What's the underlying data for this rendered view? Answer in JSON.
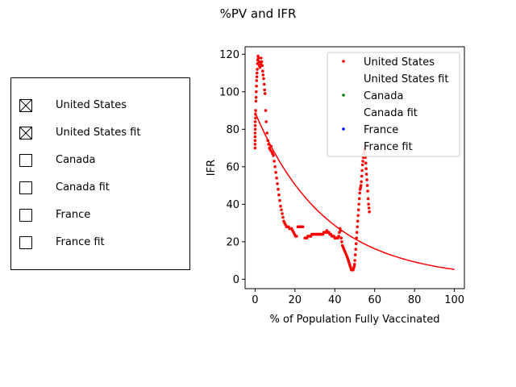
{
  "title": "%PV and IFR",
  "checkboxes": [
    {
      "label": "United States",
      "checked": true
    },
    {
      "label": "United States fit",
      "checked": true
    },
    {
      "label": "Canada",
      "checked": false
    },
    {
      "label": "Canada fit",
      "checked": false
    },
    {
      "label": "France",
      "checked": false
    },
    {
      "label": "France fit",
      "checked": false
    }
  ],
  "chart_data": {
    "type": "scatter",
    "xlabel": "% of Population Fully Vaccinated",
    "ylabel": "IFR",
    "xlim": [
      -5,
      105
    ],
    "ylim": [
      -5,
      124
    ],
    "xticks": [
      0,
      20,
      40,
      60,
      80,
      100
    ],
    "yticks": [
      0,
      20,
      40,
      60,
      80,
      100,
      120
    ],
    "grid": false,
    "legend_position": "upper-right",
    "legend": [
      {
        "label": "United States",
        "marker": "dot",
        "color": "#ff0000"
      },
      {
        "label": "United States fit",
        "marker": "none",
        "color": "#ffffff"
      },
      {
        "label": "Canada",
        "marker": "dot",
        "color": "#008000"
      },
      {
        "label": "Canada fit",
        "marker": "none",
        "color": "#ffffff"
      },
      {
        "label": "France",
        "marker": "dot",
        "color": "#0000ff"
      },
      {
        "label": "France fit",
        "marker": "none",
        "color": "#ffffff"
      }
    ],
    "series": [
      {
        "name": "United States",
        "kind": "scatter",
        "color": "#ff0000",
        "points": [
          [
            0.0,
            70
          ],
          [
            0.0,
            72
          ],
          [
            0.0,
            74
          ],
          [
            0.0,
            76
          ],
          [
            0.0,
            78
          ],
          [
            0.1,
            80
          ],
          [
            0.1,
            82
          ],
          [
            0.1,
            84
          ],
          [
            0.2,
            86
          ],
          [
            0.2,
            88
          ],
          [
            0.3,
            90
          ],
          [
            0.4,
            95
          ],
          [
            0.5,
            97
          ],
          [
            0.6,
            100
          ],
          [
            0.7,
            103
          ],
          [
            0.8,
            106
          ],
          [
            0.9,
            108
          ],
          [
            1.0,
            110
          ],
          [
            1.1,
            112
          ],
          [
            1.2,
            115
          ],
          [
            1.3,
            117
          ],
          [
            1.5,
            119
          ],
          [
            1.7,
            118
          ],
          [
            2.0,
            116
          ],
          [
            2.2,
            114
          ],
          [
            2.5,
            113
          ],
          [
            2.8,
            115
          ],
          [
            3.0,
            118
          ],
          [
            3.3,
            116
          ],
          [
            3.6,
            114
          ],
          [
            3.8,
            111
          ],
          [
            4.0,
            109
          ],
          [
            4.3,
            107
          ],
          [
            4.6,
            104
          ],
          [
            4.8,
            101
          ],
          [
            5.0,
            99
          ],
          [
            5.3,
            90
          ],
          [
            5.6,
            84
          ],
          [
            6.0,
            78
          ],
          [
            6.4,
            74
          ],
          [
            6.8,
            72
          ],
          [
            7.2,
            70
          ],
          [
            7.6,
            69
          ],
          [
            8.0,
            71
          ],
          [
            8.4,
            68
          ],
          [
            8.8,
            67
          ],
          [
            9.2,
            66
          ],
          [
            9.6,
            63
          ],
          [
            10.0,
            60
          ],
          [
            10.4,
            57
          ],
          [
            10.8,
            54
          ],
          [
            11.2,
            51
          ],
          [
            11.6,
            48
          ],
          [
            12.0,
            45
          ],
          [
            12.4,
            42
          ],
          [
            12.8,
            39
          ],
          [
            13.2,
            37
          ],
          [
            13.6,
            35
          ],
          [
            14.0,
            33
          ],
          [
            14.4,
            31
          ],
          [
            14.8,
            30
          ],
          [
            15.3,
            29
          ],
          [
            15.8,
            28
          ],
          [
            16.3,
            28
          ],
          [
            16.8,
            28
          ],
          [
            17.3,
            27
          ],
          [
            17.8,
            27
          ],
          [
            18.3,
            27
          ],
          [
            18.8,
            26
          ],
          [
            19.3,
            25
          ],
          [
            19.8,
            24
          ],
          [
            20.3,
            23
          ],
          [
            20.8,
            23
          ],
          [
            21.5,
            28
          ],
          [
            22.0,
            28
          ],
          [
            22.5,
            28
          ],
          [
            23.0,
            28
          ],
          [
            23.5,
            28
          ],
          [
            24.0,
            28
          ],
          [
            25.0,
            22
          ],
          [
            25.5,
            22
          ],
          [
            26.0,
            22
          ],
          [
            26.5,
            23
          ],
          [
            27.0,
            23
          ],
          [
            27.5,
            23
          ],
          [
            28.0,
            23
          ],
          [
            28.5,
            24
          ],
          [
            29.0,
            24
          ],
          [
            29.5,
            24
          ],
          [
            30.0,
            24
          ],
          [
            30.5,
            24
          ],
          [
            31.0,
            24
          ],
          [
            31.5,
            24
          ],
          [
            32.0,
            24
          ],
          [
            32.5,
            24
          ],
          [
            33.0,
            24
          ],
          [
            33.5,
            24
          ],
          [
            34.0,
            24
          ],
          [
            34.5,
            25
          ],
          [
            35.0,
            25
          ],
          [
            35.5,
            25
          ],
          [
            36.0,
            26
          ],
          [
            36.5,
            25
          ],
          [
            37.0,
            25
          ],
          [
            37.5,
            24
          ],
          [
            38.0,
            24
          ],
          [
            38.5,
            23
          ],
          [
            39.0,
            23
          ],
          [
            39.5,
            23
          ],
          [
            40.0,
            22
          ],
          [
            40.5,
            22
          ],
          [
            41.0,
            22
          ],
          [
            41.5,
            22
          ],
          [
            42.0,
            23
          ],
          [
            42.3,
            25
          ],
          [
            42.6,
            27
          ],
          [
            42.9,
            26
          ],
          [
            43.2,
            22
          ],
          [
            43.5,
            20
          ],
          [
            43.8,
            18
          ],
          [
            44.2,
            17
          ],
          [
            44.6,
            16
          ],
          [
            45.0,
            15
          ],
          [
            45.4,
            14
          ],
          [
            45.8,
            13
          ],
          [
            46.2,
            12
          ],
          [
            46.5,
            11
          ],
          [
            46.8,
            10
          ],
          [
            47.1,
            9
          ],
          [
            47.4,
            8
          ],
          [
            47.7,
            7
          ],
          [
            48.0,
            6
          ],
          [
            48.3,
            5
          ],
          [
            48.6,
            5
          ],
          [
            48.9,
            5
          ],
          [
            49.2,
            5
          ],
          [
            49.5,
            6
          ],
          [
            49.7,
            7
          ],
          [
            49.9,
            8
          ],
          [
            50.1,
            10
          ],
          [
            50.3,
            13
          ],
          [
            50.5,
            16
          ],
          [
            50.7,
            19
          ],
          [
            50.9,
            22
          ],
          [
            51.1,
            25
          ],
          [
            51.3,
            28
          ],
          [
            51.5,
            31
          ],
          [
            51.7,
            34
          ],
          [
            51.9,
            37
          ],
          [
            52.1,
            40
          ],
          [
            52.3,
            43
          ],
          [
            52.5,
            46
          ],
          [
            52.7,
            48
          ],
          [
            52.9,
            49
          ],
          [
            53.1,
            50
          ],
          [
            53.3,
            52
          ],
          [
            53.5,
            55
          ],
          [
            53.7,
            58
          ],
          [
            53.9,
            61
          ],
          [
            54.1,
            63
          ],
          [
            54.3,
            65
          ],
          [
            54.5,
            67
          ],
          [
            54.7,
            69
          ],
          [
            54.9,
            70
          ],
          [
            55.1,
            68
          ],
          [
            55.3,
            65
          ],
          [
            55.5,
            62
          ],
          [
            55.7,
            59
          ],
          [
            55.9,
            56
          ],
          [
            56.1,
            53
          ],
          [
            56.3,
            50
          ],
          [
            56.5,
            47
          ],
          [
            56.7,
            43
          ],
          [
            56.9,
            40
          ],
          [
            57.1,
            38
          ],
          [
            57.3,
            36
          ]
        ]
      },
      {
        "name": "United States fit",
        "kind": "line",
        "color": "#ff0000",
        "curve": {
          "form": "a*exp(-b*x)",
          "a": 89,
          "b": 0.0283,
          "x_range": [
            0,
            100
          ]
        }
      }
    ]
  }
}
